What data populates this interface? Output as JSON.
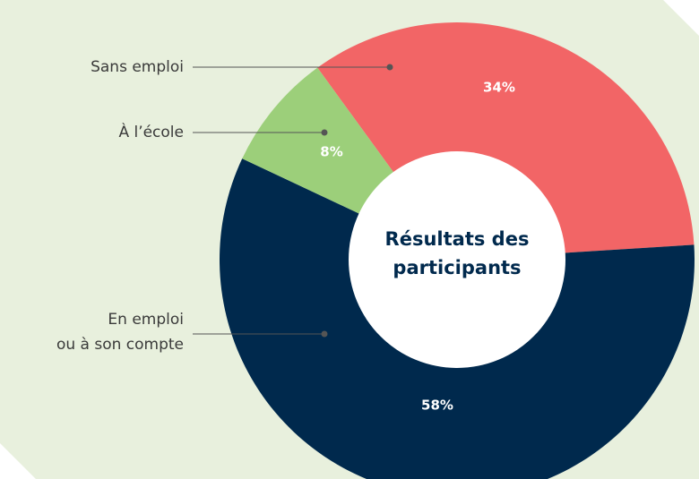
{
  "chart_data": {
    "type": "donut",
    "title": [
      "Résultats des",
      "participants"
    ],
    "categories": [
      [
        "Sans emploi"
      ],
      [
        "En emploi",
        "ou à son compte"
      ],
      [
        "À l’école"
      ]
    ],
    "values": [
      34,
      58,
      8
    ],
    "value_labels": [
      "34%",
      "58%",
      "8%"
    ],
    "colors": [
      "#f26566",
      "#00294d",
      "#9ccf7a"
    ]
  }
}
